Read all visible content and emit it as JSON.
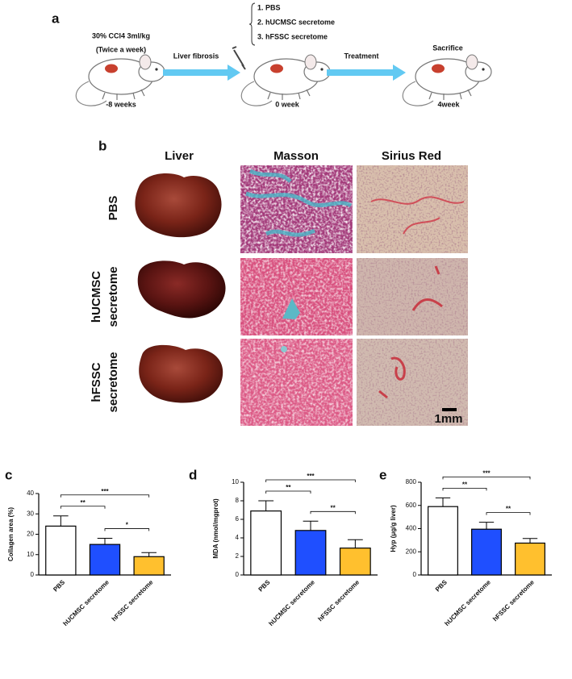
{
  "panel_a": {
    "label": "a",
    "dose": "30% CCl4 3ml/kg",
    "frequency": "(Twice a week)",
    "step1": "Liver fibrosis",
    "step2": "Treatment",
    "groups": [
      "1. PBS",
      "2. hUCMSC secretome",
      "3. hFSSC secretome"
    ],
    "end": "Sacrifice",
    "times": [
      "-8 weeks",
      "0 week",
      "4week"
    ]
  },
  "panel_b": {
    "label": "b",
    "columns": [
      "Liver",
      "Masson",
      "Sirius Red"
    ],
    "rows": [
      [
        "PBS"
      ],
      [
        "hUCMSC",
        "secretome"
      ],
      [
        "hFSSC",
        "secretome"
      ]
    ],
    "scale_bar": "1mm"
  },
  "chart_data": [
    {
      "type": "bar",
      "label": "c",
      "ylabel": "Collagen area (%)",
      "categories": [
        "PBS",
        "hUCMSC secretome",
        "hFSSC secretome"
      ],
      "values": [
        24,
        15,
        9
      ],
      "errors": [
        5,
        3,
        2
      ],
      "colors": [
        "#ffffff",
        "#1f4fff",
        "#ffc02e"
      ],
      "ylim": [
        0,
        40
      ],
      "yticks": [
        0,
        10,
        20,
        30,
        40
      ],
      "annotations": [
        {
          "from": 0,
          "to": 1,
          "label": "**"
        },
        {
          "from": 0,
          "to": 2,
          "label": "***"
        },
        {
          "from": 1,
          "to": 2,
          "label": "*"
        }
      ]
    },
    {
      "type": "bar",
      "label": "d",
      "ylabel": "MDA (nmol/mgprot)",
      "categories": [
        "PBS",
        "hUCMSC secretome",
        "hFSSC secretome"
      ],
      "values": [
        6.9,
        4.8,
        2.9
      ],
      "errors": [
        1.1,
        1.0,
        0.9
      ],
      "colors": [
        "#ffffff",
        "#1f4fff",
        "#ffc02e"
      ],
      "ylim": [
        0,
        10
      ],
      "yticks": [
        0,
        2,
        4,
        6,
        8,
        10
      ],
      "annotations": [
        {
          "from": 0,
          "to": 1,
          "label": "**"
        },
        {
          "from": 0,
          "to": 2,
          "label": "***"
        },
        {
          "from": 1,
          "to": 2,
          "label": "**"
        }
      ]
    },
    {
      "type": "bar",
      "label": "e",
      "ylabel": "Hyp (μg/g liver)",
      "categories": [
        "PBS",
        "hUCMSC secretome",
        "hFSSC secretome"
      ],
      "values": [
        590,
        395,
        275
      ],
      "errors": [
        75,
        60,
        40
      ],
      "colors": [
        "#ffffff",
        "#1f4fff",
        "#ffc02e"
      ],
      "ylim": [
        0,
        800
      ],
      "yticks": [
        0,
        200,
        400,
        600,
        800
      ],
      "annotations": [
        {
          "from": 0,
          "to": 1,
          "label": "**"
        },
        {
          "from": 0,
          "to": 2,
          "label": "***"
        },
        {
          "from": 1,
          "to": 2,
          "label": "**"
        }
      ]
    }
  ]
}
